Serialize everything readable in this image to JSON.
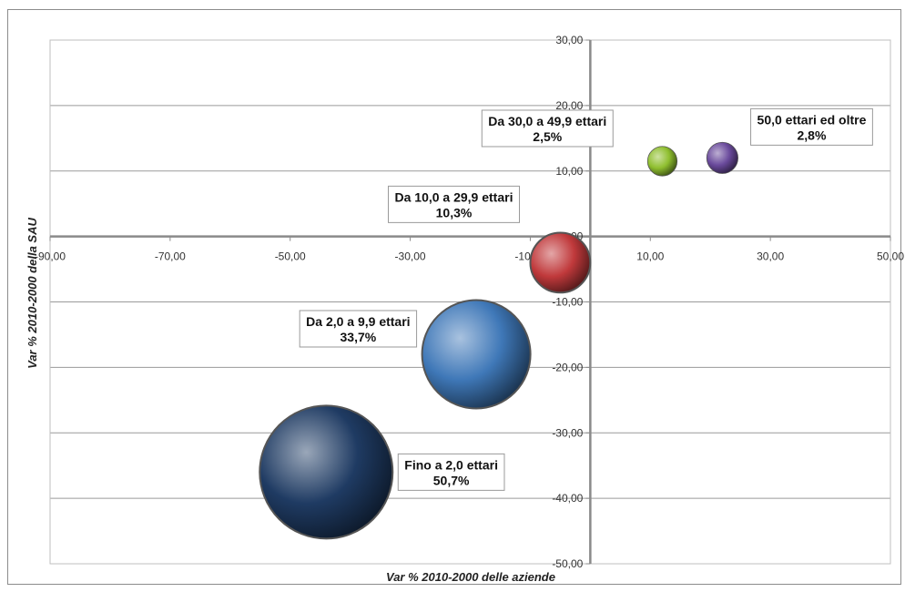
{
  "chart_data": {
    "type": "bubble",
    "xlabel": "Var % 2010-2000  delle aziende",
    "ylabel": "Var % 2010-2000 della SAU",
    "xlim": [
      -90,
      50
    ],
    "ylim": [
      -50,
      30
    ],
    "x_ticks": [
      "-90,00",
      "-70,00",
      "-50,00",
      "-30,00",
      "-10,00",
      "10,00",
      "30,00",
      "50,00"
    ],
    "x_tick_values": [
      -90,
      -70,
      -50,
      -30,
      -10,
      10,
      30,
      50
    ],
    "y_ticks": [
      "30,00",
      "20,00",
      "10,00",
      "0,00",
      "-10,00",
      "-20,00",
      "-30,00",
      "-40,00",
      "-50,00"
    ],
    "y_tick_values": [
      30,
      20,
      10,
      0,
      -10,
      -20,
      -30,
      -40,
      -50
    ],
    "grid": "horizontal",
    "series": [
      {
        "name": "Fino a 2,0 ettari",
        "share": "50,7%",
        "x": -44,
        "y": -36,
        "size": 50.7,
        "color": "#1f3b63"
      },
      {
        "name": "Da 2,0 a 9,9 ettari",
        "share": "33,7%",
        "x": -19,
        "y": -18,
        "size": 33.7,
        "color": "#3f78b8"
      },
      {
        "name": "Da 10,0 a 29,9 ettari",
        "share": "10,3%",
        "x": -5,
        "y": -4,
        "size": 10.3,
        "color": "#c0393b"
      },
      {
        "name": "Da 30,0 a 49,9 ettari",
        "share": "2,5%",
        "x": 12,
        "y": 11.5,
        "size": 2.5,
        "color": "#8fbf2f"
      },
      {
        "name": "50,0 ettari ed oltre",
        "share": "2,8%",
        "x": 22,
        "y": 12,
        "size": 2.8,
        "color": "#6a4a9c"
      }
    ]
  }
}
